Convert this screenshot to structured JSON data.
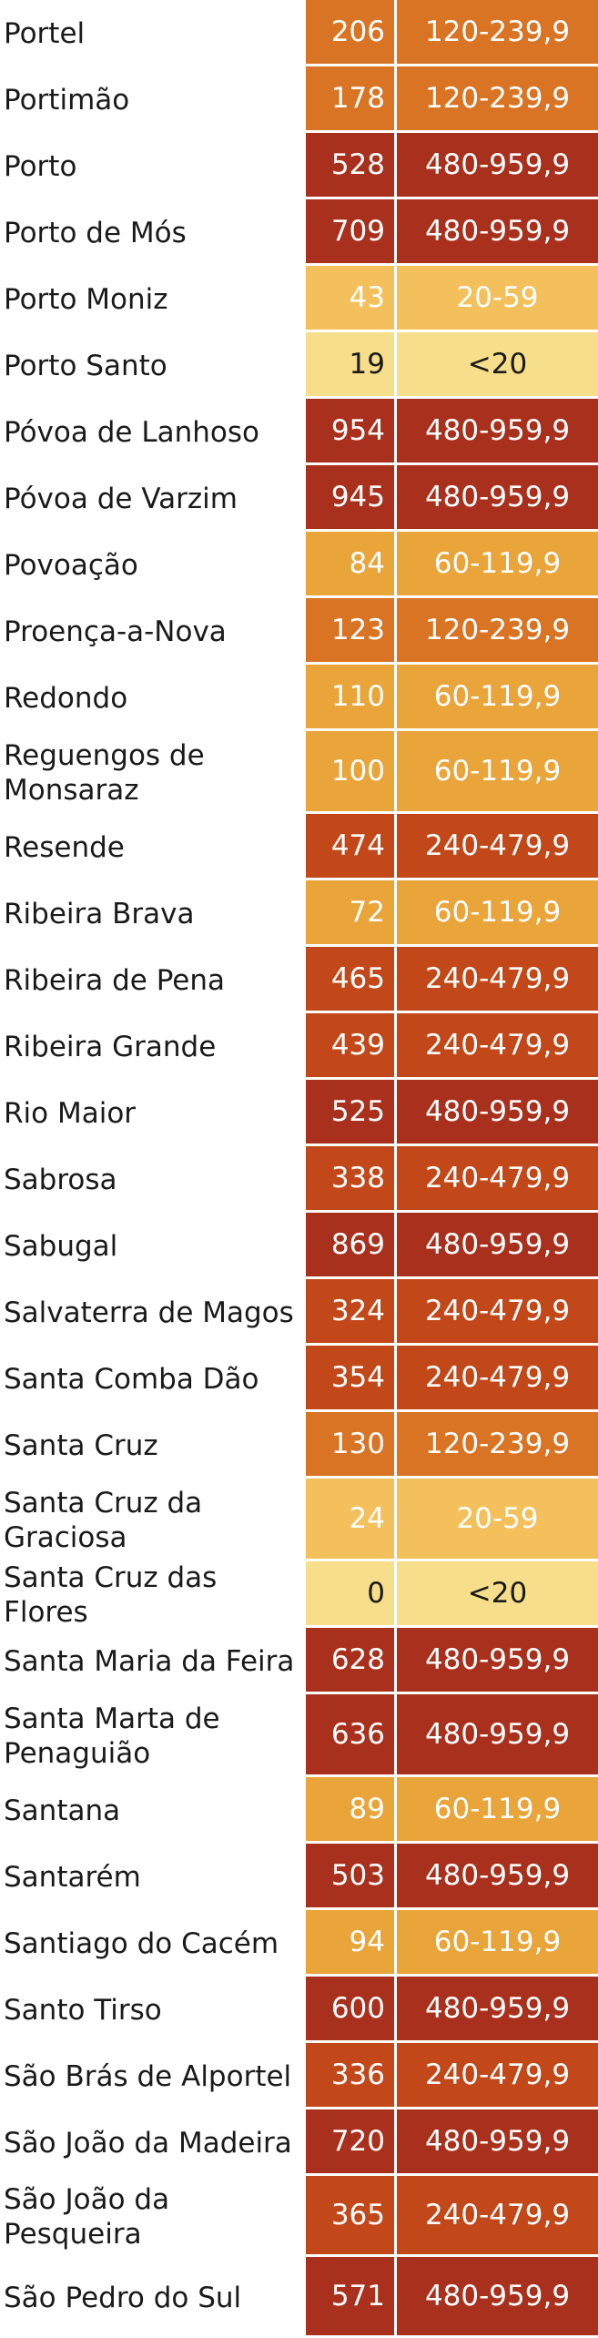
{
  "colors": {
    "<20": {
      "bg": "#f7de8a",
      "fg": "#1a1a1a"
    },
    "20-59": {
      "bg": "#f4c05c",
      "fg": "#ffffff"
    },
    "60-119,9": {
      "bg": "#e9a43a",
      "fg": "#ffffff"
    },
    "120-239,9": {
      "bg": "#d97424",
      "fg": "#ffffff"
    },
    "240-479,9": {
      "bg": "#c2481a",
      "fg": "#ffffff"
    },
    "480-959,9": {
      "bg": "#a9301c",
      "fg": "#ffffff"
    }
  },
  "rows": [
    {
      "name": "Portel",
      "value": "206",
      "range": "120-239,9"
    },
    {
      "name": "Portimão",
      "value": "178",
      "range": "120-239,9"
    },
    {
      "name": "Porto",
      "value": "528",
      "range": "480-959,9"
    },
    {
      "name": "Porto de Mós",
      "value": "709",
      "range": "480-959,9"
    },
    {
      "name": "Porto Moniz",
      "value": "43",
      "range": "20-59"
    },
    {
      "name": "Porto Santo",
      "value": "19",
      "range": "<20"
    },
    {
      "name": "Póvoa de Lanhoso",
      "value": "954",
      "range": "480-959,9"
    },
    {
      "name": "Póvoa de Varzim",
      "value": "945",
      "range": "480-959,9"
    },
    {
      "name": "Povoação",
      "value": "84",
      "range": "60-119,9"
    },
    {
      "name": "Proença-a-Nova",
      "value": "123",
      "range": "120-239,9"
    },
    {
      "name": "Redondo",
      "value": "110",
      "range": "60-119,9"
    },
    {
      "name": "Reguengos de Monsaraz",
      "value": "100",
      "range": "60-119,9"
    },
    {
      "name": "Resende",
      "value": "474",
      "range": "240-479,9"
    },
    {
      "name": "Ribeira Brava",
      "value": "72",
      "range": "60-119,9"
    },
    {
      "name": "Ribeira de Pena",
      "value": "465",
      "range": "240-479,9"
    },
    {
      "name": "Ribeira Grande",
      "value": "439",
      "range": "240-479,9"
    },
    {
      "name": "Rio Maior",
      "value": "525",
      "range": "480-959,9"
    },
    {
      "name": "Sabrosa",
      "value": "338",
      "range": "240-479,9"
    },
    {
      "name": "Sabugal",
      "value": "869",
      "range": "480-959,9"
    },
    {
      "name": "Salvaterra de Magos",
      "value": "324",
      "range": "240-479,9"
    },
    {
      "name": "Santa Comba Dão",
      "value": "354",
      "range": "240-479,9"
    },
    {
      "name": "Santa Cruz",
      "value": "130",
      "range": "120-239,9"
    },
    {
      "name": "Santa Cruz da Graciosa",
      "value": "24",
      "range": "20-59"
    },
    {
      "name": "Santa Cruz das Flores",
      "value": "0",
      "range": "<20"
    },
    {
      "name": "Santa Maria da Feira",
      "value": "628",
      "range": "480-959,9"
    },
    {
      "name": "Santa Marta de Penaguião",
      "value": "636",
      "range": "480-959,9"
    },
    {
      "name": "Santana",
      "value": "89",
      "range": "60-119,9"
    },
    {
      "name": "Santarém",
      "value": "503",
      "range": "480-959,9"
    },
    {
      "name": "Santiago do Cacém",
      "value": "94",
      "range": "60-119,9"
    },
    {
      "name": "Santo Tirso",
      "value": "600",
      "range": "480-959,9"
    },
    {
      "name": "São Brás de Alportel",
      "value": "336",
      "range": "240-479,9"
    },
    {
      "name": "São João da Madeira",
      "value": "720",
      "range": "480-959,9"
    },
    {
      "name": "São João da Pesqueira",
      "value": "365",
      "range": "240-479,9"
    },
    {
      "name": "São Pedro do Sul",
      "value": "571",
      "range": "480-959,9"
    }
  ]
}
